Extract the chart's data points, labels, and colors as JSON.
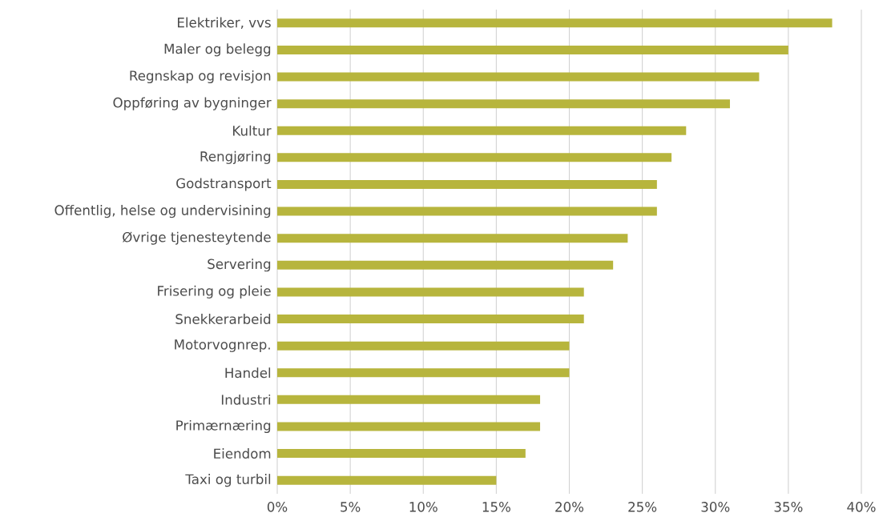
{
  "chart_data": {
    "type": "bar",
    "orientation": "horizontal",
    "categories": [
      "Elektriker, vvs",
      "Maler og belegg",
      "Regnskap og revisjon",
      "Oppføring av bygninger",
      "Kultur",
      "Rengjøring",
      "Godstransport",
      "Offentlig, helse og undervisining",
      "Øvrige tjenesteytende",
      "Servering",
      "Frisering og pleie",
      "Snekkerarbeid",
      "Motorvognrep.",
      "Handel",
      "Industri",
      "Primærnæring",
      "Eiendom",
      "Taxi og turbil"
    ],
    "values": [
      38,
      35,
      33,
      31,
      28,
      27,
      26,
      26,
      24,
      23,
      21,
      21,
      20,
      20,
      18,
      18,
      17,
      15
    ],
    "color": "#b7b53d",
    "xlim": [
      0,
      40
    ],
    "xticks": [
      {
        "value": 0,
        "label": "0%"
      },
      {
        "value": 5,
        "label": "5%"
      },
      {
        "value": 10,
        "label": "10%"
      },
      {
        "value": 15,
        "label": "15%"
      },
      {
        "value": 20,
        "label": "20%"
      },
      {
        "value": 25,
        "label": "25%"
      },
      {
        "value": 30,
        "label": "30%"
      },
      {
        "value": 35,
        "label": "35%"
      },
      {
        "value": 40,
        "label": "40%"
      }
    ],
    "grid": "x"
  }
}
